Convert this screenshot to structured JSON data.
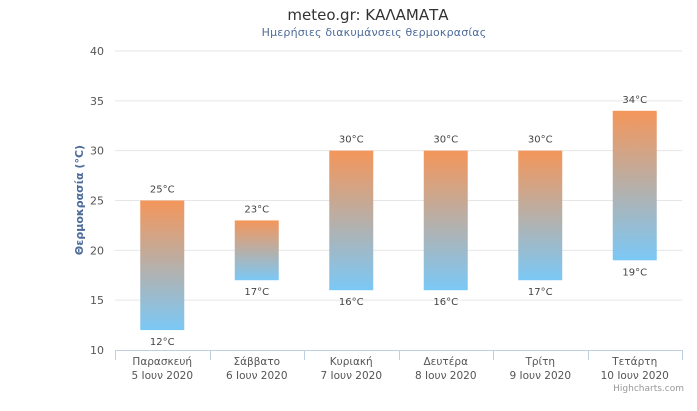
{
  "chart_data": {
    "type": "bar",
    "subtype": "columnrange",
    "title": "meteo.gr: ΚΑΛΑΜΑΤΑ",
    "subtitle": "Ημερήσιες διακυμάνσεις θερμοκρασίας",
    "ylabel": "Θερμοκρασία (°C)",
    "ylim": [
      10,
      40
    ],
    "yticks": [
      "10",
      "15",
      "20",
      "25",
      "30",
      "35",
      "40"
    ],
    "grid": true,
    "legend": "none",
    "unit": "°C",
    "categories": [
      {
        "day": "Παρασκευή",
        "date": "5 Ιουν 2020"
      },
      {
        "day": "Σάββατο",
        "date": "6 Ιουν 2020"
      },
      {
        "day": "Κυριακή",
        "date": "7 Ιουν 2020"
      },
      {
        "day": "Δευτέρα",
        "date": "8 Ιουν 2020"
      },
      {
        "day": "Τρίτη",
        "date": "9 Ιουν 2020"
      },
      {
        "day": "Τετάρτη",
        "date": "10 Ιουν 2020"
      }
    ],
    "low": [
      12,
      17,
      16,
      16,
      17,
      19
    ],
    "high": [
      25,
      23,
      30,
      30,
      30,
      34
    ],
    "low_labels": [
      "12°C",
      "17°C",
      "16°C",
      "16°C",
      "17°C",
      "19°C"
    ],
    "high_labels": [
      "25°C",
      "23°C",
      "30°C",
      "30°C",
      "30°C",
      "34°C"
    ],
    "colors": {
      "warm": "#f4965a",
      "cool": "#7bc8f6",
      "grid": "#e6e6e6",
      "axis": "#c0d0e0"
    },
    "credits": "Highcharts.com"
  }
}
